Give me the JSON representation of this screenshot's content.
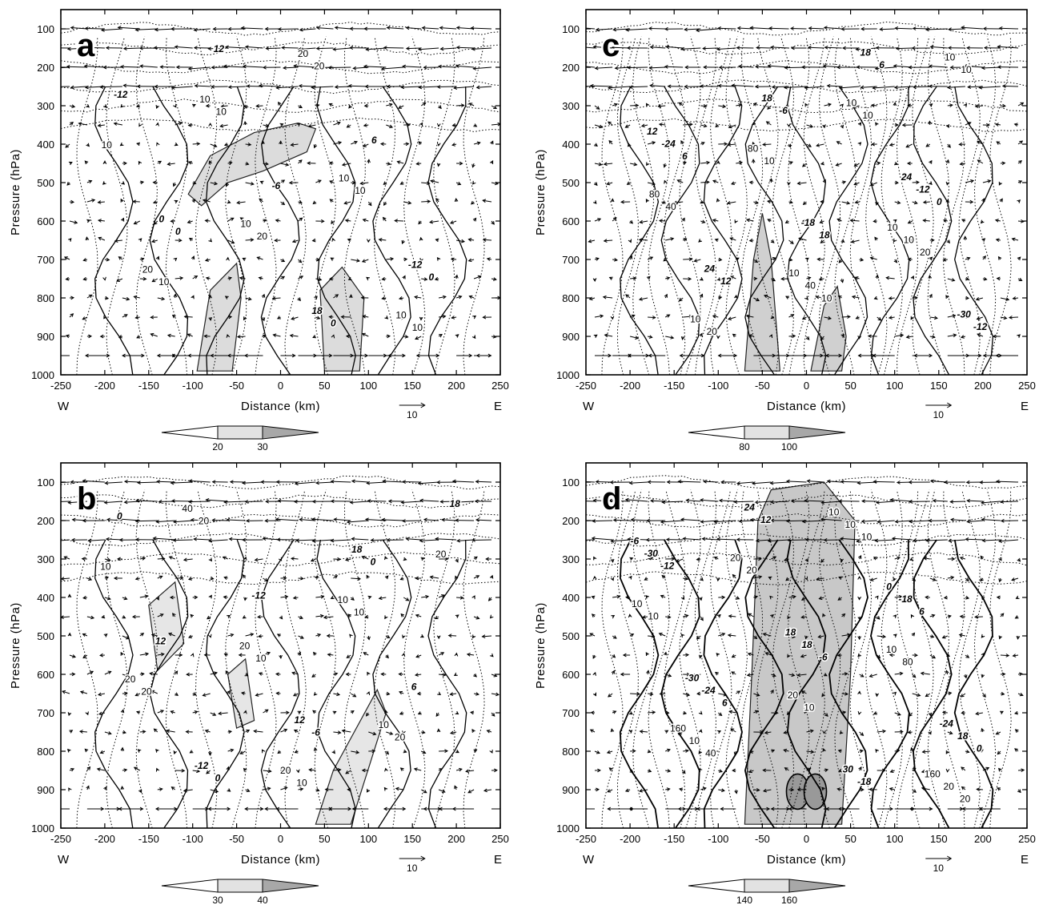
{
  "chart_data": [
    {
      "panel": "a",
      "type": "contour",
      "ylabel": "Pressure (hPa)",
      "xlabel": "Distance (km)",
      "xlim": [
        -250,
        250
      ],
      "ylim": [
        1000,
        50
      ],
      "x_ticks": [
        "-250",
        "-200",
        "-150",
        "-100",
        "-50",
        "0",
        "50",
        "100",
        "150",
        "200",
        "250"
      ],
      "y_ticks": [
        "100",
        "200",
        "300",
        "400",
        "500",
        "600",
        "700",
        "800",
        "900",
        "1000"
      ],
      "left_dir": "W",
      "right_dir": "E",
      "vector_ref": "10",
      "colorbar_labels": [
        "20",
        "30"
      ],
      "solid_contour_labels": [
        "10",
        "20",
        "10",
        "10",
        "20",
        "10",
        "10",
        "10",
        "20",
        "10",
        "20",
        "10",
        "10"
      ],
      "dotted_contour_labels": [
        "0",
        "0",
        "0",
        "-6",
        "6",
        "-12",
        "12",
        "18",
        "-12",
        "0"
      ],
      "shading": "#dcdcdc"
    },
    {
      "panel": "b",
      "type": "contour",
      "ylabel": "Pressure (hPa)",
      "xlabel": "Distance (km)",
      "xlim": [
        -250,
        250
      ],
      "ylim": [
        1000,
        50
      ],
      "x_ticks": [
        "-250",
        "-200",
        "-150",
        "-100",
        "-50",
        "0",
        "50",
        "100",
        "150",
        "200",
        "250"
      ],
      "y_ticks": [
        "100",
        "200",
        "300",
        "400",
        "500",
        "600",
        "700",
        "800",
        "900",
        "1000"
      ],
      "left_dir": "W",
      "right_dir": "E",
      "vector_ref": "10",
      "colorbar_labels": [
        "30",
        "40"
      ],
      "solid_contour_labels": [
        "10",
        "10",
        "10",
        "20",
        "10",
        "20",
        "20",
        "20",
        "10",
        "20",
        "40",
        "20",
        "10",
        "20"
      ],
      "dotted_contour_labels": [
        "0",
        "0",
        "0",
        "-6",
        "6",
        "12",
        "-12",
        "18",
        "18",
        "-12",
        "12"
      ],
      "shading": "#e6e6e6"
    },
    {
      "panel": "c",
      "type": "contour",
      "ylabel": "Pressure (hPa)",
      "xlabel": "Distance (km)",
      "xlim": [
        -250,
        250
      ],
      "ylim": [
        1000,
        50
      ],
      "x_ticks": [
        "-250",
        "-200",
        "-150",
        "-100",
        "-50",
        "0",
        "50",
        "100",
        "150",
        "200",
        "250"
      ],
      "y_ticks": [
        "100",
        "200",
        "300",
        "400",
        "500",
        "600",
        "700",
        "800",
        "900",
        "1000"
      ],
      "left_dir": "W",
      "right_dir": "E",
      "vector_ref": "10",
      "colorbar_labels": [
        "80",
        "100"
      ],
      "solid_contour_labels": [
        "10",
        "20",
        "40",
        "10",
        "10",
        "10",
        "20",
        "40",
        "10",
        "80",
        "80",
        "10",
        "10",
        "10",
        "10",
        "10"
      ],
      "dotted_contour_labels": [
        "0",
        "6",
        "-6",
        "6",
        "-12",
        "12",
        "18",
        "-12",
        "-24",
        "18",
        "18",
        "-30",
        "24",
        "-18",
        "24",
        "12"
      ],
      "shading": "#d0d0d0"
    },
    {
      "panel": "d",
      "type": "contour",
      "ylabel": "Pressure (hPa)",
      "xlabel": "Distance (km)",
      "xlim": [
        -250,
        250
      ],
      "ylim": [
        1000,
        50
      ],
      "x_ticks": [
        "-250",
        "-200",
        "-150",
        "-100",
        "-50",
        "0",
        "50",
        "100",
        "150",
        "200",
        "250"
      ],
      "y_ticks": [
        "100",
        "200",
        "300",
        "400",
        "500",
        "600",
        "700",
        "800",
        "900",
        "1000"
      ],
      "left_dir": "W",
      "right_dir": "E",
      "vector_ref": "10",
      "colorbar_labels": [
        "140",
        "160"
      ],
      "solid_contour_labels": [
        "10",
        "20",
        "40",
        "10",
        "80",
        "10",
        "20",
        "10",
        "20",
        "10",
        "20",
        "10",
        "10",
        "20",
        "10",
        "160",
        "160"
      ],
      "dotted_contour_labels": [
        "0",
        "6",
        "-6",
        "6",
        "-12",
        "12",
        "-18",
        "18",
        "-24",
        "18",
        "-18",
        "-30",
        "24",
        "30",
        "-24",
        "-30",
        "18",
        "0",
        "-6"
      ],
      "shading": "#c8c8c8"
    }
  ]
}
